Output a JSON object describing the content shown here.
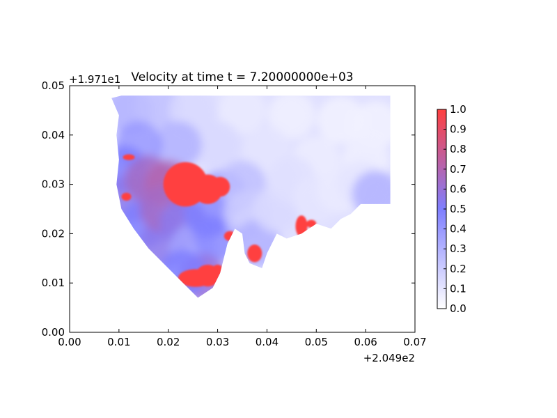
{
  "chart_data": {
    "type": "heatmap",
    "title": "Velocity at time t = 7.20000000e+03",
    "xlabel": "",
    "ylabel": "",
    "xlim": [
      0.0,
      0.07
    ],
    "ylim": [
      0.0,
      0.05
    ],
    "x_ticks": [
      "0.00",
      "0.01",
      "0.02",
      "0.03",
      "0.04",
      "0.05",
      "0.06",
      "0.07"
    ],
    "y_ticks": [
      "0.00",
      "0.01",
      "0.02",
      "0.03",
      "0.04",
      "0.05"
    ],
    "x_offset": "+2.049e2",
    "y_offset": "+1.971e1",
    "grid": false,
    "colorbar": {
      "range": [
        0.0,
        1.0
      ],
      "ticks": [
        "0.0",
        "0.1",
        "0.2",
        "0.3",
        "0.4",
        "0.5",
        "0.6",
        "0.7",
        "0.8",
        "0.9",
        "1.0"
      ],
      "color_low": "#ffffff",
      "color_mid": "#7f7fff",
      "color_high": "#ff3f3f"
    },
    "domain_outline": [
      [
        0.0085,
        0.0475
      ],
      [
        0.0105,
        0.048
      ],
      [
        0.065,
        0.048
      ],
      [
        0.065,
        0.026
      ],
      [
        0.062,
        0.026
      ],
      [
        0.059,
        0.026
      ],
      [
        0.057,
        0.024
      ],
      [
        0.055,
        0.023
      ],
      [
        0.053,
        0.021
      ],
      [
        0.05,
        0.022
      ],
      [
        0.047,
        0.02
      ],
      [
        0.044,
        0.019
      ],
      [
        0.042,
        0.02
      ],
      [
        0.04,
        0.016
      ],
      [
        0.039,
        0.013
      ],
      [
        0.0365,
        0.014
      ],
      [
        0.0355,
        0.016
      ],
      [
        0.035,
        0.02
      ],
      [
        0.0335,
        0.021
      ],
      [
        0.032,
        0.018
      ],
      [
        0.0305,
        0.012
      ],
      [
        0.029,
        0.009
      ],
      [
        0.026,
        0.007
      ],
      [
        0.023,
        0.01
      ],
      [
        0.02,
        0.013
      ],
      [
        0.016,
        0.017
      ],
      [
        0.013,
        0.021
      ],
      [
        0.0105,
        0.025
      ],
      [
        0.0095,
        0.03
      ],
      [
        0.01,
        0.035
      ],
      [
        0.0095,
        0.04
      ],
      [
        0.01,
        0.044
      ]
    ],
    "field_points": [
      [
        0.012,
        0.045,
        0.3
      ],
      [
        0.018,
        0.046,
        0.25
      ],
      [
        0.025,
        0.045,
        0.15
      ],
      [
        0.035,
        0.045,
        0.08
      ],
      [
        0.045,
        0.044,
        0.06
      ],
      [
        0.055,
        0.043,
        0.05
      ],
      [
        0.062,
        0.042,
        0.05
      ],
      [
        0.06,
        0.035,
        0.06
      ],
      [
        0.05,
        0.035,
        0.07
      ],
      [
        0.04,
        0.037,
        0.1
      ],
      [
        0.03,
        0.038,
        0.15
      ],
      [
        0.022,
        0.038,
        0.3
      ],
      [
        0.014,
        0.038,
        0.4
      ],
      [
        0.011,
        0.033,
        0.5
      ],
      [
        0.012,
        0.027,
        0.55
      ],
      [
        0.015,
        0.022,
        0.5
      ],
      [
        0.019,
        0.018,
        0.55
      ],
      [
        0.016,
        0.031,
        0.65
      ],
      [
        0.02,
        0.03,
        0.7
      ],
      [
        0.019,
        0.025,
        0.65
      ],
      [
        0.023,
        0.022,
        0.55
      ],
      [
        0.025,
        0.017,
        0.35
      ],
      [
        0.03,
        0.019,
        0.45
      ],
      [
        0.028,
        0.024,
        0.5
      ],
      [
        0.031,
        0.028,
        0.4
      ],
      [
        0.035,
        0.03,
        0.25
      ],
      [
        0.036,
        0.024,
        0.2
      ],
      [
        0.038,
        0.018,
        0.3
      ],
      [
        0.042,
        0.025,
        0.15
      ],
      [
        0.045,
        0.031,
        0.12
      ],
      [
        0.05,
        0.027,
        0.1
      ],
      [
        0.055,
        0.029,
        0.08
      ],
      [
        0.059,
        0.03,
        0.1
      ],
      [
        0.062,
        0.028,
        0.3
      ],
      [
        0.027,
        0.011,
        0.6
      ],
      [
        0.023,
        0.012,
        0.5
      ]
    ],
    "high_regions": [
      [
        0.0235,
        0.03,
        0.0045,
        0.0045,
        1.0
      ],
      [
        0.028,
        0.029,
        0.003,
        0.003,
        1.0
      ],
      [
        0.0305,
        0.0295,
        0.002,
        0.002,
        1.0
      ],
      [
        0.0255,
        0.011,
        0.0035,
        0.0018,
        1.0
      ],
      [
        0.028,
        0.0115,
        0.0025,
        0.0022,
        1.0
      ],
      [
        0.03,
        0.0125,
        0.0012,
        0.0012,
        1.0
      ],
      [
        0.0375,
        0.016,
        0.0015,
        0.0018,
        1.0
      ],
      [
        0.047,
        0.0215,
        0.0012,
        0.0022,
        1.0
      ],
      [
        0.049,
        0.022,
        0.001,
        0.0008,
        1.0
      ],
      [
        0.0325,
        0.0195,
        0.0012,
        0.001,
        1.0
      ],
      [
        0.0115,
        0.0275,
        0.001,
        0.0008,
        1.0
      ],
      [
        0.012,
        0.0355,
        0.0012,
        0.0006,
        1.0
      ]
    ]
  }
}
